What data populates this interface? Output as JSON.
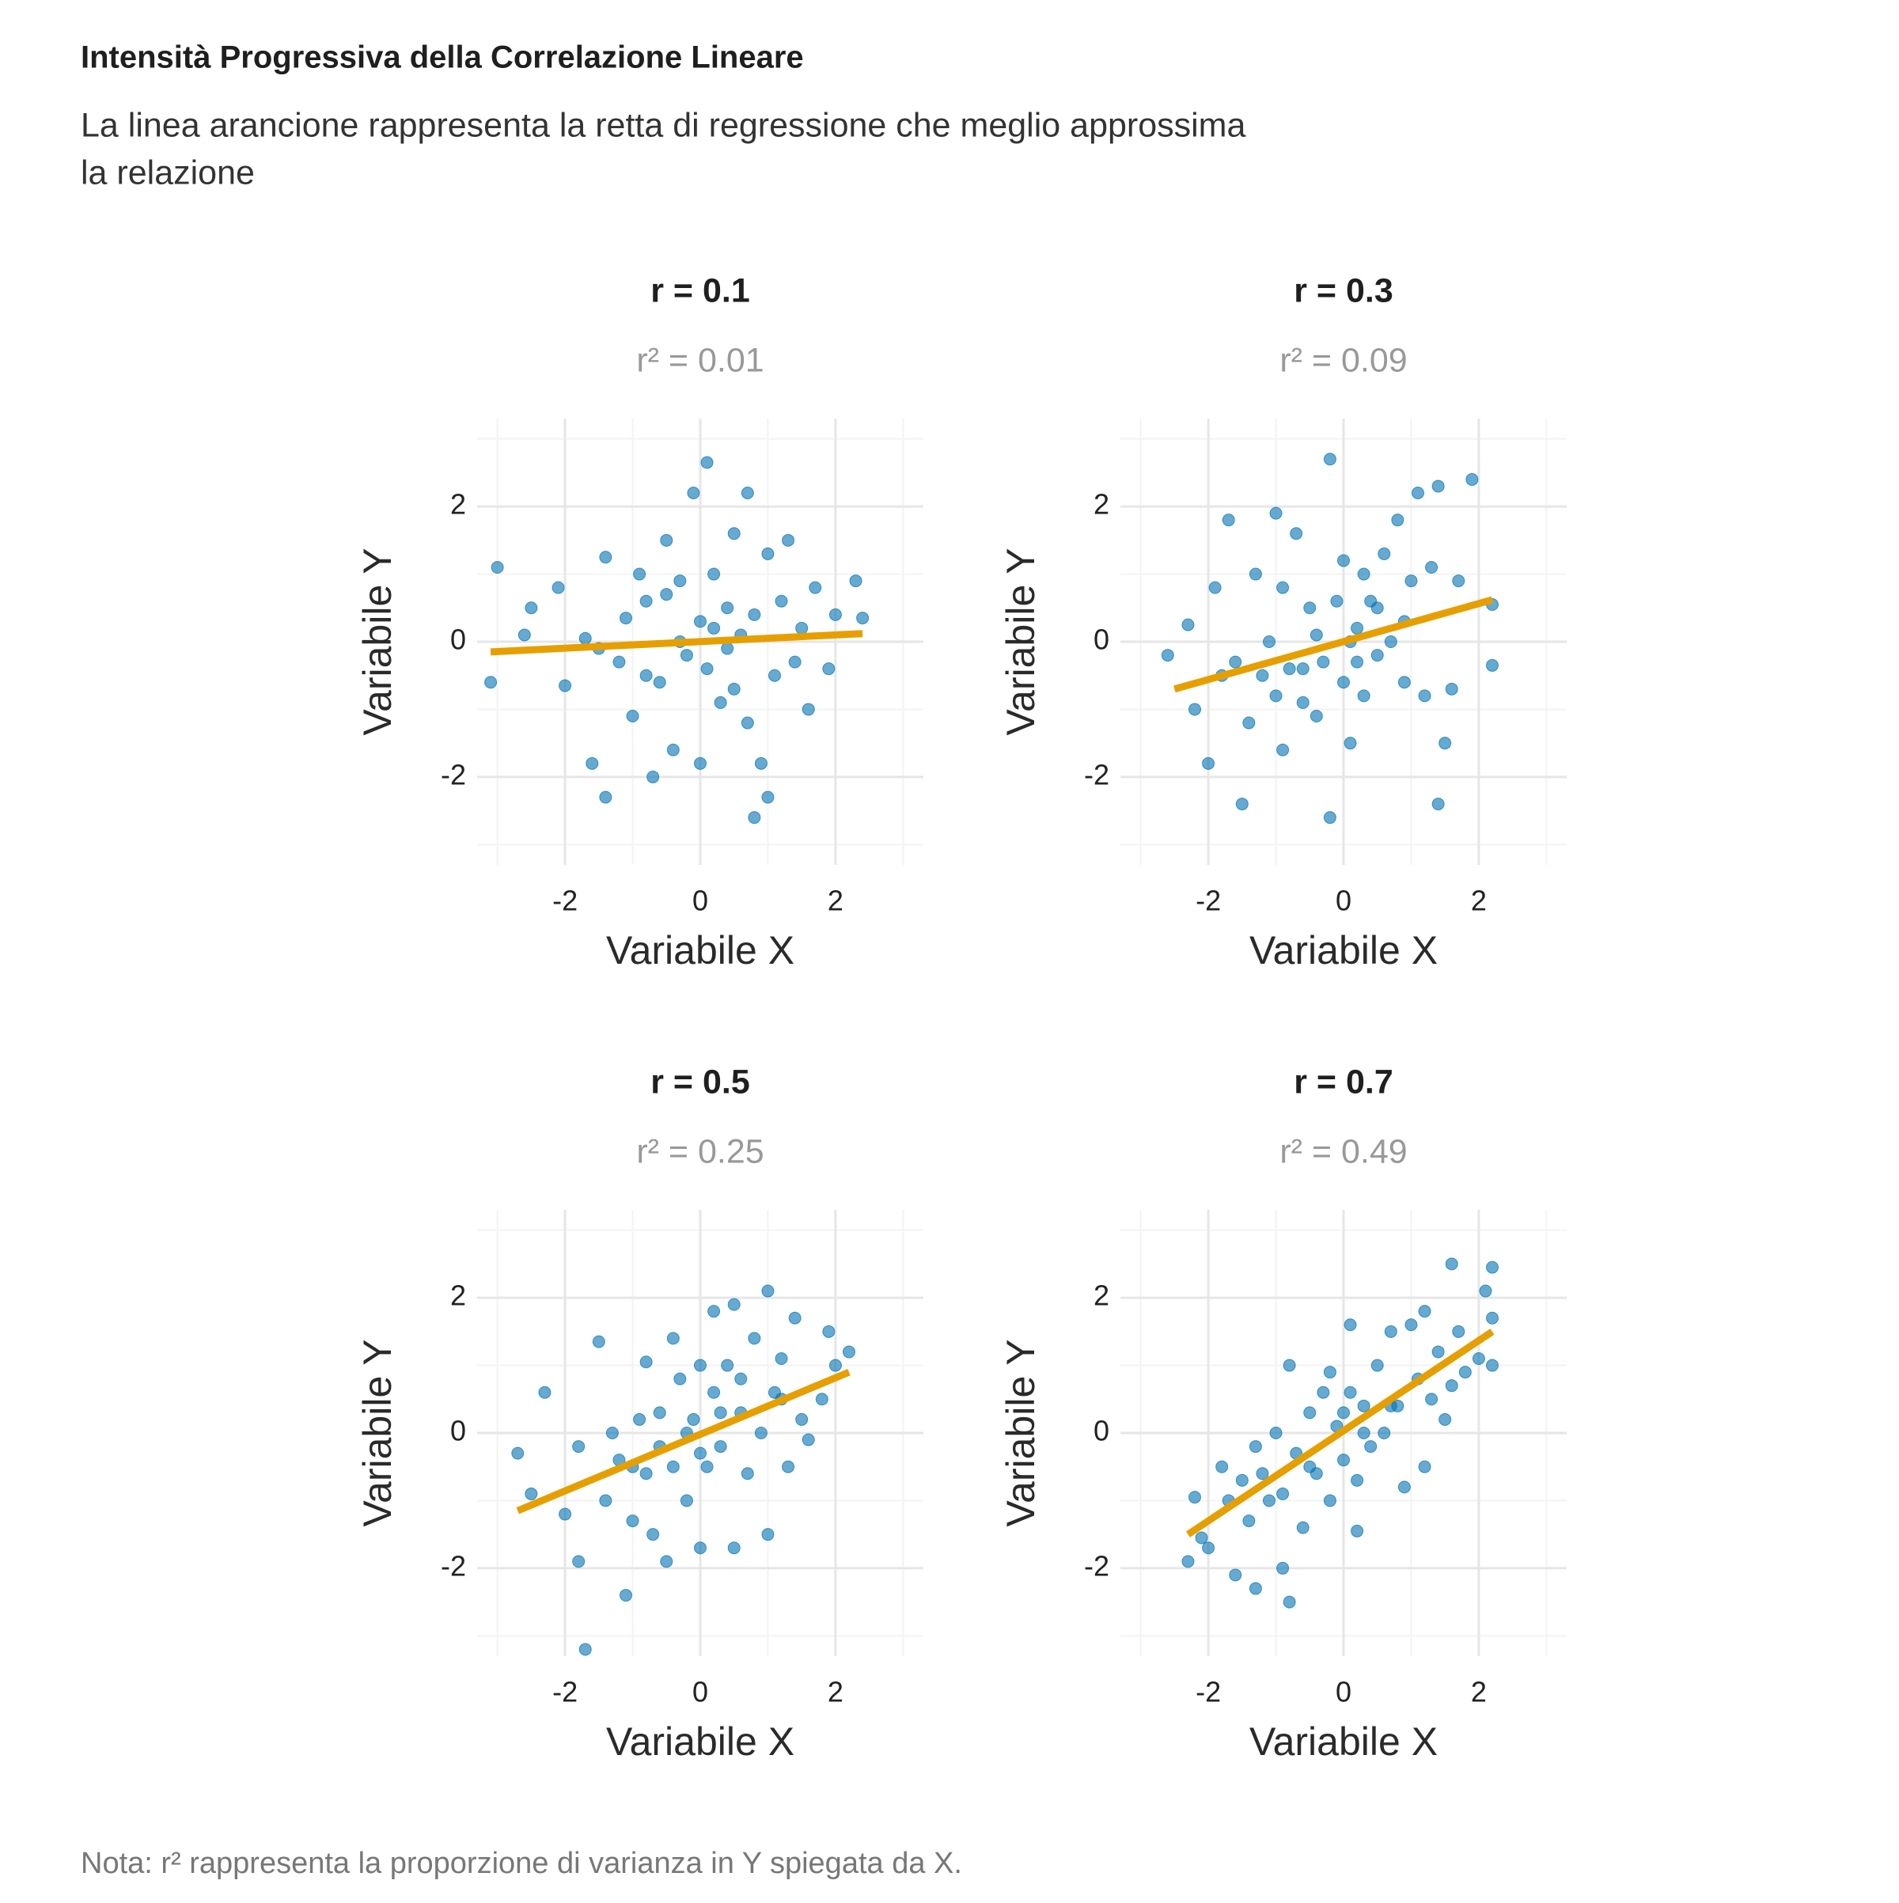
{
  "title": "Intensità Progressiva della Correlazione Lineare",
  "subtitle": [
    "La linea arancione rappresenta la retta di regressione che meglio approssima",
    "la relazione"
  ],
  "caption": "Nota: r² rappresenta la proporzione di varianza in Y spiegata da X.",
  "chart_data": [
    {
      "type": "scatter",
      "title": "r = 0.1",
      "subtitle": "r² = 0.01",
      "xlabel": "Variabile X",
      "ylabel": "Variabile Y",
      "xlim": [
        -3.3,
        3.3
      ],
      "ylim": [
        -3.3,
        3.3
      ],
      "xticks": [
        -2,
        0,
        2
      ],
      "yticks": [
        -2,
        0,
        2
      ],
      "minor_ticks": [
        -3,
        -1,
        1,
        3
      ],
      "grid": true,
      "color": "#0072B2",
      "line_color": "#E69F00",
      "x": [
        -3.0,
        -3.1,
        -2.5,
        -2.6,
        -2.1,
        -2.0,
        -1.7,
        -1.5,
        -1.4,
        -1.4,
        -1.2,
        -1.1,
        -1.0,
        -0.9,
        -0.8,
        -0.7,
        -0.6,
        -0.5,
        -0.4,
        -0.3,
        -0.2,
        -0.1,
        0.0,
        0.0,
        0.1,
        0.1,
        0.2,
        0.3,
        0.4,
        0.5,
        0.5,
        0.6,
        0.7,
        0.8,
        0.8,
        0.9,
        1.0,
        1.0,
        1.1,
        1.2,
        1.3,
        1.4,
        1.6,
        1.7,
        1.9,
        2.0,
        2.3,
        2.4,
        -0.3,
        0.2,
        -0.8,
        0.4,
        -1.6,
        1.5,
        -0.5,
        0.7
      ],
      "values": [
        1.1,
        -0.6,
        0.5,
        0.1,
        0.8,
        -0.65,
        0.05,
        -0.1,
        1.25,
        -2.3,
        -0.3,
        0.35,
        -1.1,
        1.0,
        0.6,
        -2.0,
        -0.6,
        1.5,
        -1.6,
        0.9,
        -0.2,
        2.2,
        0.3,
        -1.8,
        2.65,
        -0.4,
        1.0,
        -0.9,
        0.5,
        1.6,
        -0.7,
        0.1,
        2.2,
        -2.6,
        0.4,
        -1.8,
        -2.3,
        1.3,
        -0.5,
        0.6,
        1.5,
        -0.3,
        -1.0,
        0.8,
        -0.4,
        0.4,
        0.9,
        0.35,
        0.0,
        0.2,
        -0.5,
        -0.1,
        -1.8,
        0.2,
        0.7,
        -1.2
      ],
      "trend": {
        "x": [
          -3.1,
          2.4
        ],
        "values": [
          -0.15,
          0.12
        ]
      }
    },
    {
      "type": "scatter",
      "title": "r = 0.3",
      "subtitle": "r² = 0.09",
      "xlabel": "Variabile X",
      "ylabel": "Variabile Y",
      "xlim": [
        -3.3,
        3.3
      ],
      "ylim": [
        -3.3,
        3.3
      ],
      "xticks": [
        -2,
        0,
        2
      ],
      "yticks": [
        -2,
        0,
        2
      ],
      "minor_ticks": [
        -3,
        -1,
        1,
        3
      ],
      "grid": true,
      "color": "#0072B2",
      "line_color": "#E69F00",
      "x": [
        -2.6,
        -2.3,
        -2.2,
        -2.0,
        -1.9,
        -1.7,
        -1.6,
        -1.5,
        -1.4,
        -1.3,
        -1.2,
        -1.1,
        -1.0,
        -0.9,
        -0.9,
        -0.8,
        -0.7,
        -0.6,
        -0.5,
        -0.4,
        -0.3,
        -0.2,
        -0.2,
        -0.1,
        0.0,
        0.0,
        0.1,
        0.2,
        0.3,
        0.3,
        0.4,
        0.5,
        0.6,
        0.7,
        0.8,
        0.9,
        1.0,
        1.1,
        1.2,
        1.3,
        1.4,
        1.4,
        1.5,
        1.6,
        1.7,
        1.9,
        2.2,
        2.2,
        -1.8,
        0.5,
        -0.4,
        0.1,
        -1.0,
        0.9,
        0.2,
        -0.6
      ],
      "values": [
        -0.2,
        0.25,
        -1.0,
        -1.8,
        0.8,
        1.8,
        -0.3,
        -2.4,
        -1.2,
        1.0,
        -0.5,
        0.0,
        1.9,
        -1.6,
        0.8,
        -0.4,
        1.6,
        -0.9,
        0.5,
        -1.1,
        -0.3,
        2.7,
        -2.6,
        0.6,
        -0.6,
        1.2,
        -1.5,
        0.2,
        1.0,
        -0.8,
        0.6,
        -0.2,
        1.3,
        0.0,
        1.8,
        -0.6,
        0.9,
        2.2,
        -0.8,
        1.1,
        2.3,
        -2.4,
        -1.5,
        -0.7,
        0.9,
        2.4,
        -0.35,
        0.55,
        -0.5,
        0.5,
        0.1,
        0.0,
        -0.8,
        0.3,
        -0.3,
        -0.4
      ],
      "trend": {
        "x": [
          -2.5,
          2.2
        ],
        "values": [
          -0.7,
          0.62
        ]
      }
    },
    {
      "type": "scatter",
      "title": "r = 0.5",
      "subtitle": "r² = 0.25",
      "xlabel": "Variabile X",
      "ylabel": "Variabile Y",
      "xlim": [
        -3.3,
        3.3
      ],
      "ylim": [
        -3.3,
        3.3
      ],
      "xticks": [
        -2,
        0,
        2
      ],
      "yticks": [
        -2,
        0,
        2
      ],
      "minor_ticks": [
        -3,
        -1,
        1,
        3
      ],
      "grid": true,
      "color": "#0072B2",
      "line_color": "#E69F00",
      "x": [
        -2.7,
        -2.5,
        -2.3,
        -2.0,
        -1.8,
        -1.8,
        -1.7,
        -1.5,
        -1.4,
        -1.3,
        -1.2,
        -1.1,
        -1.0,
        -0.9,
        -0.8,
        -0.8,
        -0.7,
        -0.6,
        -0.5,
        -0.4,
        -0.4,
        -0.3,
        -0.2,
        -0.1,
        0.0,
        0.0,
        0.1,
        0.2,
        0.2,
        0.3,
        0.4,
        0.5,
        0.5,
        0.6,
        0.7,
        0.8,
        0.9,
        1.0,
        1.0,
        1.1,
        1.2,
        1.3,
        1.4,
        1.5,
        1.6,
        1.8,
        1.9,
        2.0,
        2.2,
        -0.6,
        0.3,
        -0.2,
        0.6,
        -1.0,
        1.2,
        0.0
      ],
      "values": [
        -0.3,
        -0.9,
        0.6,
        -1.2,
        -0.2,
        -1.9,
        -3.2,
        1.35,
        -1.0,
        0.0,
        -0.4,
        -2.4,
        -1.3,
        0.2,
        1.05,
        -0.6,
        -1.5,
        0.3,
        -1.9,
        1.4,
        -0.5,
        0.8,
        -1.0,
        0.2,
        1.0,
        -1.7,
        -0.5,
        0.6,
        1.8,
        -0.2,
        1.0,
        1.9,
        -1.7,
        0.3,
        -0.6,
        1.4,
        0.0,
        -1.5,
        2.1,
        0.6,
        1.1,
        -0.5,
        1.7,
        0.2,
        -0.1,
        0.5,
        1.5,
        1.0,
        1.2,
        -0.2,
        0.3,
        0.0,
        0.8,
        -0.5,
        0.5,
        -0.3
      ],
      "trend": {
        "x": [
          -2.7,
          2.2
        ],
        "values": [
          -1.15,
          0.9
        ]
      }
    },
    {
      "type": "scatter",
      "title": "r = 0.7",
      "subtitle": "r² = 0.49",
      "xlabel": "Variabile X",
      "ylabel": "Variabile Y",
      "xlim": [
        -3.3,
        3.3
      ],
      "ylim": [
        -3.3,
        3.3
      ],
      "xticks": [
        -2,
        0,
        2
      ],
      "yticks": [
        -2,
        0,
        2
      ],
      "minor_ticks": [
        -3,
        -1,
        1,
        3
      ],
      "grid": true,
      "color": "#0072B2",
      "line_color": "#E69F00",
      "x": [
        -2.3,
        -2.2,
        -2.1,
        -2.0,
        -1.8,
        -1.7,
        -1.6,
        -1.4,
        -1.3,
        -1.3,
        -1.2,
        -1.1,
        -1.0,
        -0.9,
        -0.9,
        -0.8,
        -0.8,
        -0.7,
        -0.6,
        -0.5,
        -0.4,
        -0.3,
        -0.2,
        -0.2,
        -0.1,
        0.0,
        0.1,
        0.1,
        0.2,
        0.2,
        0.3,
        0.4,
        0.5,
        0.6,
        0.7,
        0.8,
        0.9,
        1.0,
        1.1,
        1.2,
        1.2,
        1.3,
        1.4,
        1.5,
        1.6,
        1.6,
        1.7,
        1.8,
        2.0,
        2.1,
        2.2,
        2.2,
        2.2,
        -0.5,
        0.3,
        -1.5,
        0.0,
        0.7
      ],
      "values": [
        -1.9,
        -0.95,
        -1.55,
        -1.7,
        -0.5,
        -1.0,
        -2.1,
        -1.3,
        -0.2,
        -2.3,
        -0.6,
        -1.0,
        0.0,
        -0.9,
        -2.0,
        1.0,
        -2.5,
        -0.3,
        -1.4,
        0.3,
        -0.6,
        0.6,
        -1.0,
        0.9,
        0.1,
        -0.4,
        0.6,
        1.6,
        -0.7,
        -1.45,
        0.4,
        -0.2,
        1.0,
        0.0,
        1.5,
        0.4,
        -0.8,
        1.6,
        0.8,
        -0.5,
        1.8,
        0.5,
        1.2,
        0.2,
        2.5,
        0.7,
        1.5,
        0.9,
        1.1,
        2.1,
        2.45,
        1.7,
        1.0,
        -0.5,
        0.0,
        -0.7,
        0.3,
        0.4
      ],
      "trend": {
        "x": [
          -2.3,
          2.2
        ],
        "values": [
          -1.5,
          1.5
        ]
      }
    }
  ]
}
